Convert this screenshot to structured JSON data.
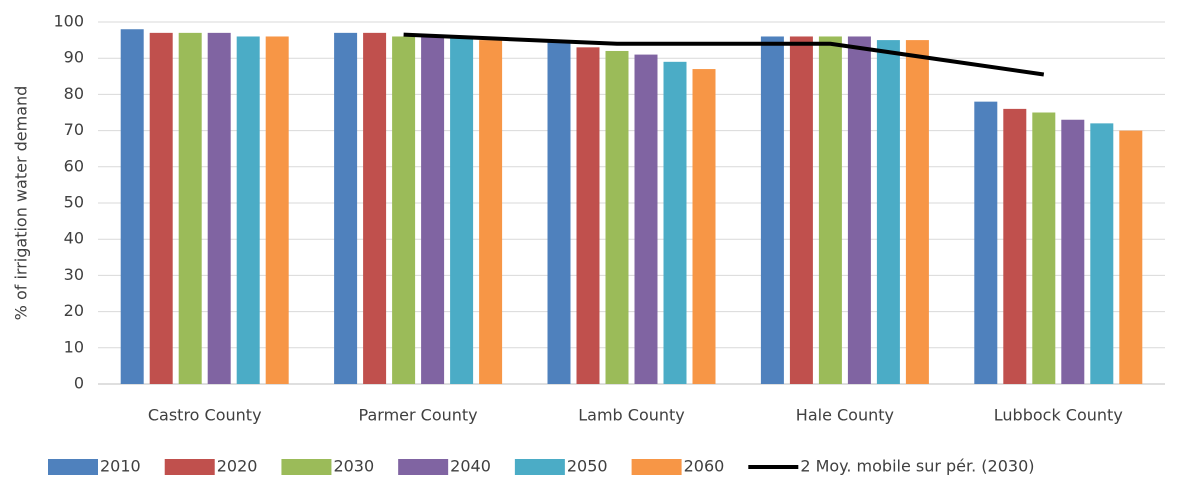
{
  "chart_data": {
    "type": "bar",
    "y_label": "% of irrigation water demand",
    "categories": [
      "Castro County",
      "Parmer County",
      "Lamb County",
      "Hale County",
      "Lubbock County"
    ],
    "series": [
      {
        "name": "2010",
        "color": "#4f81bd",
        "values": [
          98,
          97,
          95,
          96,
          78
        ]
      },
      {
        "name": "2020",
        "color": "#c0504d",
        "values": [
          97,
          97,
          93,
          96,
          76
        ]
      },
      {
        "name": "2030",
        "color": "#9bbb59",
        "values": [
          97,
          96,
          92,
          96,
          75
        ]
      },
      {
        "name": "2040",
        "color": "#8064a2",
        "values": [
          97,
          96,
          91,
          96,
          73
        ]
      },
      {
        "name": "2050",
        "color": "#4bacc6",
        "values": [
          96,
          96,
          89,
          95,
          72
        ]
      },
      {
        "name": "2060",
        "color": "#f79646",
        "values": [
          96,
          95,
          87,
          95,
          70
        ]
      },
      {
        "name": "2 Moy. mobile sur pér. (2030)",
        "type": "line",
        "color": "#000000",
        "values": [
          null,
          96.5,
          94,
          94,
          85.5
        ]
      }
    ],
    "ylim": [
      0,
      100
    ],
    "yticks": [
      0,
      10,
      20,
      30,
      40,
      50,
      60,
      70,
      80,
      90,
      100
    ],
    "grid": true,
    "legend": "bottom"
  }
}
